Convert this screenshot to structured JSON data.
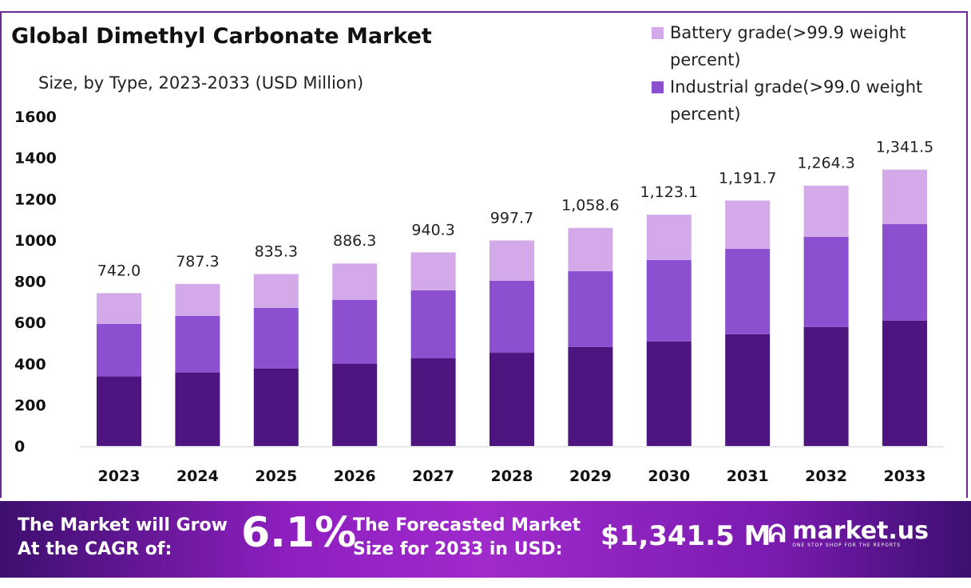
{
  "chart_data": {
    "type": "stacked-bar",
    "title": "Global Dimethyl Carbonate Market",
    "subtitle": "Size, by Type, 2023-2033 (USD Million)",
    "categories": [
      "2023",
      "2024",
      "2025",
      "2026",
      "2027",
      "2028",
      "2029",
      "2030",
      "2031",
      "2032",
      "2033"
    ],
    "series": [
      {
        "values": [
          337,
          357,
          376,
          399,
          426,
          453,
          481,
          508,
          543,
          578,
          609
        ],
        "color": "#4e1580"
      },
      {
        "name": "Industrial grade(>99.0 weight percent)",
        "values": [
          256,
          275,
          295,
          310,
          330,
          349,
          368,
          395,
          414,
          438,
          469
        ],
        "color": "#8b4fcf"
      },
      {
        "name": "Battery grade(>99.9 weight percent)",
        "values": [
          149,
          155,
          164,
          177,
          184,
          196,
          210,
          220,
          235,
          248,
          264
        ],
        "color": "#d3a9ea"
      }
    ],
    "totals": [
      "742.0",
      "787.3",
      "835.3",
      "886.3",
      "940.3",
      "997.7",
      "1,058.6",
      "1,123.1",
      "1,191.7",
      "1,264.3",
      "1,341.5"
    ],
    "total_values": [
      742.0,
      787.3,
      835.3,
      886.3,
      940.3,
      997.7,
      1058.6,
      1123.1,
      1191.7,
      1264.3,
      1341.5
    ],
    "yticks": [
      "0",
      "200",
      "400",
      "600",
      "800",
      "1000",
      "1200",
      "1400",
      "1600"
    ],
    "ylim": [
      0,
      1600
    ],
    "grid": false,
    "legend_position": "top-right"
  },
  "banner": {
    "cagr_label_1": "The Market will Grow",
    "cagr_label_2": "At the CAGR of:",
    "cagr_value": "6.1%",
    "forecast_label_1": "The Forecasted Market",
    "forecast_label_2": "Size for 2033 in USD:",
    "forecast_value": "$1,341.5 M",
    "logo_text": "market.us",
    "logo_tagline": "ONE STOP SHOP FOR THE REPORTS"
  }
}
